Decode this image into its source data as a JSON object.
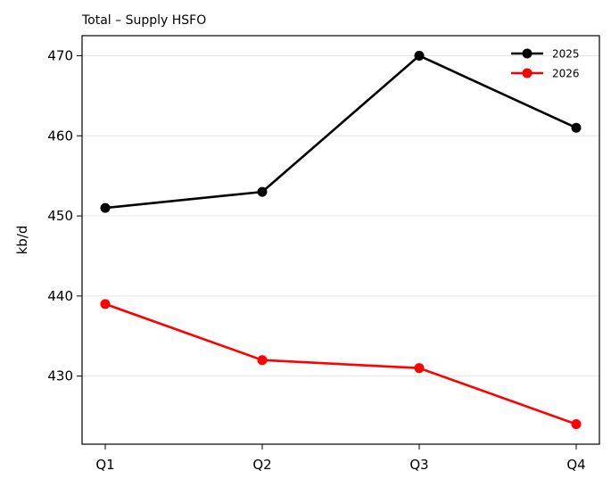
{
  "chart_data": {
    "type": "line",
    "title": "Total – Supply HSFO",
    "xlabel": "",
    "ylabel": "kb/d",
    "categories": [
      "Q1",
      "Q2",
      "Q3",
      "Q4"
    ],
    "ylim": [
      421.5,
      472.5
    ],
    "yticks": [
      430,
      440,
      450,
      460,
      470
    ],
    "grid": "horizontal",
    "legend_position": "top-right",
    "series": [
      {
        "name": "2025",
        "color": "#000000",
        "values": [
          451,
          453,
          470,
          461
        ]
      },
      {
        "name": "2026",
        "color": "#ff0000",
        "values": [
          439,
          432,
          431,
          424
        ]
      }
    ]
  }
}
